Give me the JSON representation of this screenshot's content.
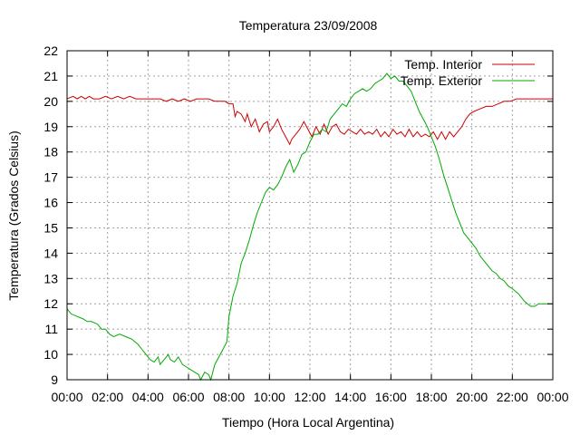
{
  "chart_data": {
    "type": "line",
    "title": "Temperatura 23/09/2008",
    "xlabel": "Tiempo (Hora Local Argentina)",
    "ylabel": "Temperatura (Grados Celsius)",
    "x_unit": "hours",
    "xlim": [
      0,
      24
    ],
    "ylim": [
      9,
      22
    ],
    "x_ticks": [
      0,
      2,
      4,
      6,
      8,
      10,
      12,
      14,
      16,
      18,
      20,
      22,
      24
    ],
    "x_tick_labels": [
      "00:00",
      "02:00",
      "04:00",
      "06:00",
      "08:00",
      "10:00",
      "12:00",
      "14:00",
      "16:00",
      "18:00",
      "20:00",
      "22:00",
      "00:00"
    ],
    "y_ticks": [
      9,
      10,
      11,
      12,
      13,
      14,
      15,
      16,
      17,
      18,
      19,
      20,
      21,
      22
    ],
    "y_tick_labels": [
      "9",
      "10",
      "11",
      "12",
      "13",
      "14",
      "15",
      "16",
      "17",
      "18",
      "19",
      "20",
      "21",
      "22"
    ],
    "grid": true,
    "legend_position": "top-right",
    "series": [
      {
        "name": "Temp. Interior",
        "color": "#cc0000",
        "points": [
          [
            0.0,
            20.1
          ],
          [
            0.3,
            20.2
          ],
          [
            0.5,
            20.1
          ],
          [
            0.7,
            20.2
          ],
          [
            0.9,
            20.1
          ],
          [
            1.1,
            20.2
          ],
          [
            1.3,
            20.1
          ],
          [
            1.6,
            20.1
          ],
          [
            1.9,
            20.2
          ],
          [
            2.2,
            20.1
          ],
          [
            2.5,
            20.2
          ],
          [
            2.8,
            20.1
          ],
          [
            3.1,
            20.2
          ],
          [
            3.4,
            20.1
          ],
          [
            3.7,
            20.1
          ],
          [
            4.0,
            20.1
          ],
          [
            4.3,
            20.1
          ],
          [
            4.6,
            20.1
          ],
          [
            4.9,
            20.0
          ],
          [
            5.2,
            20.1
          ],
          [
            5.5,
            20.0
          ],
          [
            5.8,
            20.1
          ],
          [
            6.1,
            20.0
          ],
          [
            6.4,
            20.1
          ],
          [
            6.7,
            20.1
          ],
          [
            7.0,
            20.1
          ],
          [
            7.3,
            20.0
          ],
          [
            7.6,
            20.0
          ],
          [
            7.8,
            20.0
          ],
          [
            8.0,
            19.9
          ],
          [
            8.2,
            19.9
          ],
          [
            8.3,
            19.4
          ],
          [
            8.4,
            19.6
          ],
          [
            8.6,
            19.5
          ],
          [
            8.8,
            19.2
          ],
          [
            8.9,
            19.5
          ],
          [
            9.1,
            19.0
          ],
          [
            9.3,
            19.3
          ],
          [
            9.5,
            18.8
          ],
          [
            9.7,
            19.1
          ],
          [
            9.9,
            19.2
          ],
          [
            10.0,
            18.8
          ],
          [
            10.2,
            19.0
          ],
          [
            10.4,
            19.3
          ],
          [
            10.6,
            18.9
          ],
          [
            10.8,
            18.6
          ],
          [
            11.0,
            18.3
          ],
          [
            11.1,
            18.5
          ],
          [
            11.3,
            18.7
          ],
          [
            11.5,
            18.9
          ],
          [
            11.7,
            19.2
          ],
          [
            11.9,
            18.9
          ],
          [
            12.1,
            18.6
          ],
          [
            12.3,
            19.0
          ],
          [
            12.5,
            18.7
          ],
          [
            12.7,
            19.1
          ],
          [
            12.9,
            18.7
          ],
          [
            13.1,
            19.0
          ],
          [
            13.3,
            19.1
          ],
          [
            13.5,
            18.8
          ],
          [
            13.7,
            18.7
          ],
          [
            13.9,
            18.9
          ],
          [
            14.1,
            18.8
          ],
          [
            14.3,
            18.7
          ],
          [
            14.5,
            18.9
          ],
          [
            14.7,
            18.7
          ],
          [
            14.9,
            18.8
          ],
          [
            15.1,
            18.7
          ],
          [
            15.3,
            18.9
          ],
          [
            15.5,
            18.6
          ],
          [
            15.7,
            18.8
          ],
          [
            15.9,
            18.6
          ],
          [
            16.1,
            18.9
          ],
          [
            16.3,
            18.7
          ],
          [
            16.5,
            18.8
          ],
          [
            16.7,
            18.6
          ],
          [
            16.9,
            18.9
          ],
          [
            17.1,
            18.6
          ],
          [
            17.3,
            18.8
          ],
          [
            17.5,
            18.6
          ],
          [
            17.7,
            18.7
          ],
          [
            17.9,
            18.6
          ],
          [
            18.1,
            18.8
          ],
          [
            18.3,
            18.5
          ],
          [
            18.5,
            18.8
          ],
          [
            18.7,
            18.5
          ],
          [
            18.9,
            18.8
          ],
          [
            19.1,
            18.6
          ],
          [
            19.3,
            18.8
          ],
          [
            19.5,
            19.0
          ],
          [
            19.7,
            19.3
          ],
          [
            19.9,
            19.5
          ],
          [
            20.1,
            19.6
          ],
          [
            20.4,
            19.7
          ],
          [
            20.7,
            19.8
          ],
          [
            21.0,
            19.8
          ],
          [
            21.3,
            19.9
          ],
          [
            21.6,
            20.0
          ],
          [
            21.9,
            20.0
          ],
          [
            22.2,
            20.1
          ],
          [
            22.6,
            20.1
          ],
          [
            23.0,
            20.1
          ],
          [
            23.5,
            20.1
          ],
          [
            24.0,
            20.1
          ]
        ]
      },
      {
        "name": "Temp. Exterior",
        "color": "#00aa00",
        "points": [
          [
            0.0,
            11.8
          ],
          [
            0.2,
            11.6
          ],
          [
            0.5,
            11.5
          ],
          [
            0.8,
            11.4
          ],
          [
            1.0,
            11.3
          ],
          [
            1.2,
            11.3
          ],
          [
            1.5,
            11.2
          ],
          [
            1.7,
            11.0
          ],
          [
            1.9,
            11.0
          ],
          [
            2.1,
            10.8
          ],
          [
            2.3,
            10.7
          ],
          [
            2.6,
            10.8
          ],
          [
            2.9,
            10.7
          ],
          [
            3.2,
            10.6
          ],
          [
            3.5,
            10.4
          ],
          [
            3.7,
            10.2
          ],
          [
            3.9,
            10.0
          ],
          [
            4.1,
            9.8
          ],
          [
            4.3,
            9.7
          ],
          [
            4.5,
            9.9
          ],
          [
            4.6,
            9.6
          ],
          [
            4.8,
            9.8
          ],
          [
            5.0,
            10.0
          ],
          [
            5.1,
            9.8
          ],
          [
            5.3,
            9.7
          ],
          [
            5.5,
            9.9
          ],
          [
            5.7,
            9.6
          ],
          [
            5.9,
            9.5
          ],
          [
            6.1,
            9.4
          ],
          [
            6.3,
            9.3
          ],
          [
            6.5,
            9.2
          ],
          [
            6.6,
            9.0
          ],
          [
            6.8,
            9.3
          ],
          [
            7.0,
            9.2
          ],
          [
            7.1,
            9.0
          ],
          [
            7.3,
            9.6
          ],
          [
            7.5,
            9.9
          ],
          [
            7.7,
            10.2
          ],
          [
            7.9,
            10.5
          ],
          [
            8.0,
            11.5
          ],
          [
            8.2,
            12.3
          ],
          [
            8.4,
            12.8
          ],
          [
            8.6,
            13.6
          ],
          [
            8.8,
            14.0
          ],
          [
            9.0,
            14.5
          ],
          [
            9.2,
            15.1
          ],
          [
            9.4,
            15.6
          ],
          [
            9.6,
            16.0
          ],
          [
            9.8,
            16.4
          ],
          [
            10.0,
            16.6
          ],
          [
            10.2,
            16.5
          ],
          [
            10.4,
            16.7
          ],
          [
            10.6,
            17.0
          ],
          [
            10.8,
            17.4
          ],
          [
            11.0,
            17.7
          ],
          [
            11.2,
            17.2
          ],
          [
            11.4,
            17.5
          ],
          [
            11.6,
            17.9
          ],
          [
            11.8,
            18.0
          ],
          [
            12.0,
            18.4
          ],
          [
            12.2,
            18.7
          ],
          [
            12.4,
            18.7
          ],
          [
            12.6,
            18.9
          ],
          [
            12.8,
            18.8
          ],
          [
            13.0,
            19.3
          ],
          [
            13.2,
            19.5
          ],
          [
            13.4,
            19.7
          ],
          [
            13.6,
            19.9
          ],
          [
            13.8,
            19.8
          ],
          [
            14.0,
            20.1
          ],
          [
            14.2,
            20.3
          ],
          [
            14.4,
            20.4
          ],
          [
            14.6,
            20.5
          ],
          [
            14.8,
            20.4
          ],
          [
            15.0,
            20.5
          ],
          [
            15.2,
            20.7
          ],
          [
            15.4,
            20.8
          ],
          [
            15.6,
            20.9
          ],
          [
            15.8,
            21.1
          ],
          [
            16.0,
            20.9
          ],
          [
            16.2,
            21.0
          ],
          [
            16.4,
            20.8
          ],
          [
            16.6,
            20.8
          ],
          [
            16.8,
            20.6
          ],
          [
            17.0,
            20.4
          ],
          [
            17.2,
            20.0
          ],
          [
            17.4,
            19.6
          ],
          [
            17.6,
            19.3
          ],
          [
            17.8,
            19.0
          ],
          [
            18.0,
            18.6
          ],
          [
            18.2,
            18.2
          ],
          [
            18.4,
            17.7
          ],
          [
            18.6,
            17.1
          ],
          [
            18.8,
            16.6
          ],
          [
            19.0,
            16.1
          ],
          [
            19.2,
            15.6
          ],
          [
            19.4,
            15.2
          ],
          [
            19.6,
            14.8
          ],
          [
            19.8,
            14.6
          ],
          [
            20.0,
            14.4
          ],
          [
            20.2,
            14.2
          ],
          [
            20.4,
            13.9
          ],
          [
            20.6,
            13.7
          ],
          [
            20.8,
            13.5
          ],
          [
            21.0,
            13.3
          ],
          [
            21.2,
            13.2
          ],
          [
            21.4,
            13.0
          ],
          [
            21.6,
            12.9
          ],
          [
            21.8,
            12.7
          ],
          [
            22.0,
            12.6
          ],
          [
            22.3,
            12.4
          ],
          [
            22.6,
            12.1
          ],
          [
            22.9,
            11.9
          ],
          [
            23.1,
            11.9
          ],
          [
            23.3,
            12.0
          ],
          [
            23.5,
            12.0
          ],
          [
            23.7,
            12.0
          ],
          [
            24.0,
            12.0
          ]
        ]
      }
    ]
  }
}
